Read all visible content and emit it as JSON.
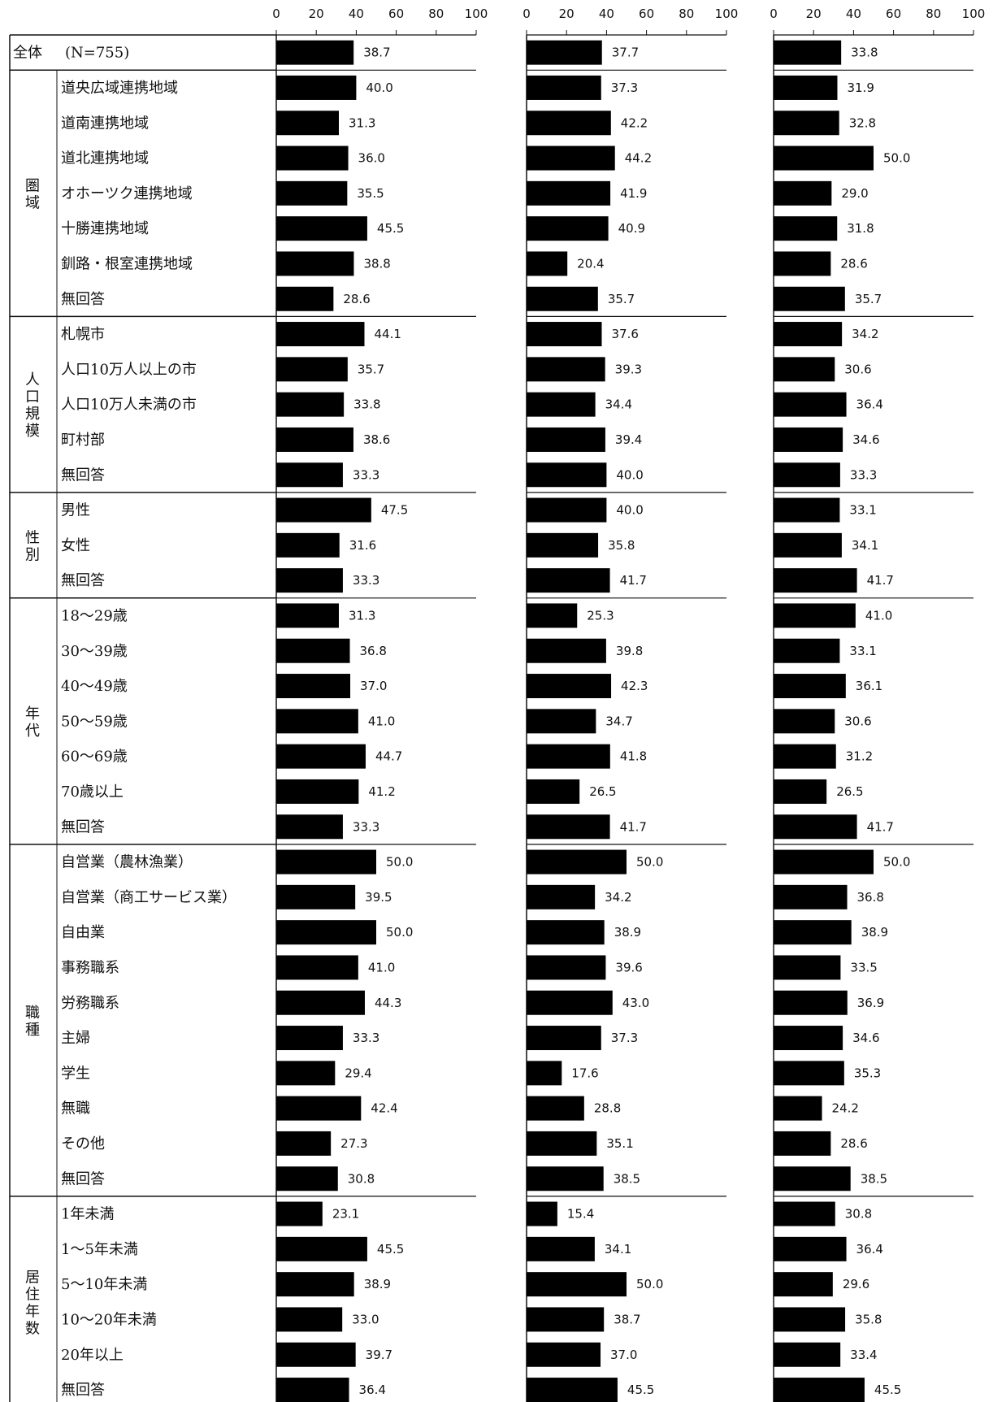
{
  "chart_data": {
    "type": "bar",
    "orientation": "horizontal",
    "panels": 3,
    "xlim": [
      0,
      100
    ],
    "xticks": [
      "0",
      "20",
      "40",
      "60",
      "80",
      "100"
    ],
    "grid": false,
    "total": {
      "label": "全体",
      "n_label": "(N=755)",
      "values": [
        38.7,
        37.7,
        33.8
      ]
    },
    "groups": [
      {
        "label": "圏域",
        "rows": [
          {
            "label": "道央広域連携地域",
            "values": [
              40.0,
              37.3,
              31.9
            ]
          },
          {
            "label": "道南連携地域",
            "values": [
              31.3,
              42.2,
              32.8
            ]
          },
          {
            "label": "道北連携地域",
            "values": [
              36.0,
              44.2,
              50.0
            ]
          },
          {
            "label": "オホーツク連携地域",
            "values": [
              35.5,
              41.9,
              29.0
            ]
          },
          {
            "label": "十勝連携地域",
            "values": [
              45.5,
              40.9,
              31.8
            ]
          },
          {
            "label": "釧路・根室連携地域",
            "values": [
              38.8,
              20.4,
              28.6
            ]
          },
          {
            "label": "無回答",
            "values": [
              28.6,
              35.7,
              35.7
            ]
          }
        ]
      },
      {
        "label": "人口規模",
        "rows": [
          {
            "label": "札幌市",
            "values": [
              44.1,
              37.6,
              34.2
            ]
          },
          {
            "label": "人口10万人以上の市",
            "values": [
              35.7,
              39.3,
              30.6
            ]
          },
          {
            "label": "人口10万人未満の市",
            "values": [
              33.8,
              34.4,
              36.4
            ]
          },
          {
            "label": "町村部",
            "values": [
              38.6,
              39.4,
              34.6
            ]
          },
          {
            "label": "無回答",
            "values": [
              33.3,
              40.0,
              33.3
            ]
          }
        ]
      },
      {
        "label": "性別",
        "rows": [
          {
            "label": "男性",
            "values": [
              47.5,
              40.0,
              33.1
            ]
          },
          {
            "label": "女性",
            "values": [
              31.6,
              35.8,
              34.1
            ]
          },
          {
            "label": "無回答",
            "values": [
              33.3,
              41.7,
              41.7
            ]
          }
        ]
      },
      {
        "label": "年代",
        "rows": [
          {
            "label": "18～29歳",
            "values": [
              31.3,
              25.3,
              41.0
            ]
          },
          {
            "label": "30～39歳",
            "values": [
              36.8,
              39.8,
              33.1
            ]
          },
          {
            "label": "40～49歳",
            "values": [
              37.0,
              42.3,
              36.1
            ]
          },
          {
            "label": "50～59歳",
            "values": [
              41.0,
              34.7,
              30.6
            ]
          },
          {
            "label": "60～69歳",
            "values": [
              44.7,
              41.8,
              31.2
            ]
          },
          {
            "label": "70歳以上",
            "values": [
              41.2,
              26.5,
              26.5
            ]
          },
          {
            "label": "無回答",
            "values": [
              33.3,
              41.7,
              41.7
            ]
          }
        ]
      },
      {
        "label": "職種",
        "rows": [
          {
            "label": "自営業（農林漁業）",
            "values": [
              50.0,
              50.0,
              50.0
            ]
          },
          {
            "label": "自営業（商工サービス業）",
            "values": [
              39.5,
              34.2,
              36.8
            ]
          },
          {
            "label": "自由業",
            "values": [
              50.0,
              38.9,
              38.9
            ]
          },
          {
            "label": "事務職系",
            "values": [
              41.0,
              39.6,
              33.5
            ]
          },
          {
            "label": "労務職系",
            "values": [
              44.3,
              43.0,
              36.9
            ]
          },
          {
            "label": "主婦",
            "values": [
              33.3,
              37.3,
              34.6
            ]
          },
          {
            "label": "学生",
            "values": [
              29.4,
              17.6,
              35.3
            ]
          },
          {
            "label": "無職",
            "values": [
              42.4,
              28.8,
              24.2
            ]
          },
          {
            "label": "その他",
            "values": [
              27.3,
              35.1,
              28.6
            ]
          },
          {
            "label": "無回答",
            "values": [
              30.8,
              38.5,
              38.5
            ]
          }
        ]
      },
      {
        "label": "居住年数",
        "rows": [
          {
            "label": "1年未満",
            "values": [
              23.1,
              15.4,
              30.8
            ]
          },
          {
            "label": "1～5年未満",
            "values": [
              45.5,
              34.1,
              36.4
            ]
          },
          {
            "label": "5～10年未満",
            "values": [
              38.9,
              50.0,
              29.6
            ]
          },
          {
            "label": "10～20年未満",
            "values": [
              33.0,
              38.7,
              35.8
            ]
          },
          {
            "label": "20年以上",
            "values": [
              39.7,
              37.0,
              33.4
            ]
          },
          {
            "label": "無回答",
            "values": [
              36.4,
              45.5,
              45.5
            ]
          }
        ]
      }
    ],
    "colors": {
      "bar": "#000000",
      "line": "#111111",
      "background": "#ffffff"
    }
  }
}
